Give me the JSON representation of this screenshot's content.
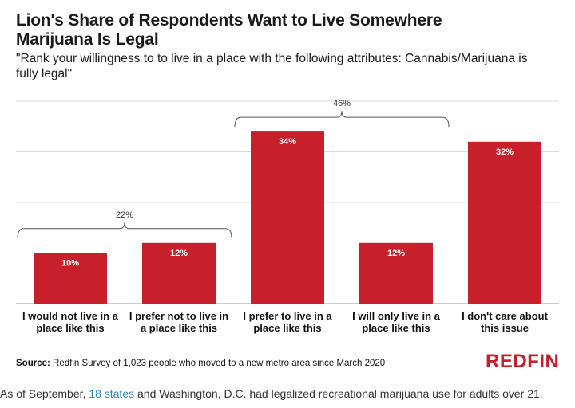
{
  "title": "Lion's Share of Respondents Want to Live Somewhere Marijuana Is Legal",
  "subtitle": "\"Rank your willingness to to live in a place with the following attributes: Cannabis/Marijuana is fully legal\"",
  "chart_data": {
    "type": "bar",
    "categories": [
      [
        "I would not live in a",
        "place like this"
      ],
      [
        "I prefer not to live in",
        "a place like this"
      ],
      [
        "I prefer to live in a",
        "place like this"
      ],
      [
        "I will only live in a",
        "place like this"
      ],
      [
        "I don't care about",
        "this issue"
      ]
    ],
    "values": [
      10,
      12,
      34,
      12,
      32
    ],
    "value_labels": [
      "10%",
      "12%",
      "34%",
      "12%",
      "32%"
    ],
    "ylim": [
      0,
      40
    ],
    "grid": true,
    "bar_color": "#c8202a",
    "groups": [
      {
        "label": "22%",
        "from": 0,
        "to": 1,
        "level": 22
      },
      {
        "label": "46%",
        "from": 2,
        "to": 3,
        "level": 46
      }
    ]
  },
  "source": {
    "prefix": "Source:",
    "text": " Redfin Survey of 1,023 people who moved to a new metro area since March 2020"
  },
  "logo": "REDFIN",
  "caption": {
    "before": "As of September, ",
    "link": "18 states",
    "after": " and Washington, D.C. had legalized recreational marijuana use for adults over 21."
  },
  "colors": {
    "accent": "#c8202a",
    "link": "#2a86c4"
  }
}
